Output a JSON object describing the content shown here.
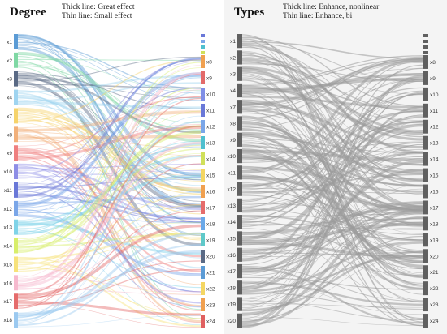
{
  "left_panel": {
    "title": "Degree",
    "legend": [
      "Thick line: Great effect",
      "Thin line: Small effect"
    ],
    "left_nodes": [
      "x1",
      "x2",
      "x3",
      "x4",
      "x7",
      "x8",
      "x9",
      "x10",
      "x11",
      "x12",
      "x13",
      "x14",
      "x15",
      "x16",
      "x17",
      "x18"
    ],
    "right_nodes": [
      "x8",
      "x9",
      "x10",
      "x11",
      "x12",
      "x13",
      "x14",
      "x15",
      "x16",
      "x17",
      "x18",
      "x19",
      "x20",
      "x21",
      "x22",
      "x23",
      "x24"
    ]
  },
  "right_panel": {
    "title": "Types",
    "legend": [
      "Thick line: Enhance, nonlinear",
      "Thin line: Enhance, bi"
    ],
    "left_nodes": [
      "x1",
      "x2",
      "x3",
      "x4",
      "x7",
      "x8",
      "x9",
      "x10",
      "x11",
      "x12",
      "x13",
      "x14",
      "x15",
      "x16",
      "x17",
      "x18",
      "x19",
      "x20"
    ],
    "right_nodes": [
      "x8",
      "x9",
      "x10",
      "x11",
      "x12",
      "x13",
      "x14",
      "x15",
      "x16",
      "x17",
      "x18",
      "x19",
      "x20",
      "x21",
      "x22",
      "x23",
      "x24"
    ]
  },
  "colors": {
    "left_palette": [
      "#5b9bd5",
      "#7fd8a4",
      "#5a6a85",
      "#9fd4f0",
      "#f6d36b",
      "#f2b07a",
      "#ef7f7f",
      "#8e8ee6",
      "#6a78d8",
      "#7aa6e8",
      "#7fd3e8",
      "#d8ee6b",
      "#f7e27a",
      "#f6b9ce",
      "#e56b6b",
      "#9bc9f0"
    ],
    "left_right_palette": [
      "#f0a050",
      "#e36a6a",
      "#7f8ee6",
      "#6a78d8",
      "#7aa6e8",
      "#4fc0cf",
      "#d0e05a",
      "#f4d662",
      "#f0a050",
      "#e56b6b",
      "#6aa8e8",
      "#5fc9c9",
      "#5a6a85",
      "#5b9bd5",
      "#f4d662",
      "#f0a050",
      "#e06060"
    ],
    "gray_node": "#606060",
    "gray_link": "#9a9a9a",
    "right_bg": "#f4f4f4"
  }
}
